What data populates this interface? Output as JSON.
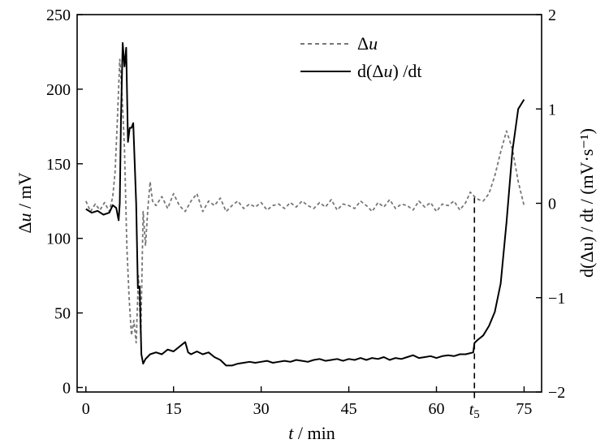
{
  "chart_data": {
    "type": "line",
    "x_axis": {
      "label_var": "t",
      "label_rest": " / min",
      "range": [
        -1.5,
        78
      ],
      "ticks": [
        0,
        15,
        30,
        45,
        60,
        75
      ],
      "tick_labels": [
        "0",
        "15",
        "30",
        "45",
        "60",
        "75"
      ]
    },
    "y_left": {
      "label_prefix": "Δ",
      "label_var": "u",
      "label_rest": " / mV",
      "range": [
        -3,
        250
      ],
      "ticks": [
        0,
        50,
        100,
        150,
        200,
        250
      ],
      "tick_labels": [
        "0",
        "50",
        "100",
        "150",
        "200",
        "250"
      ]
    },
    "y_right": {
      "label": "d(Δu) / dt / (mV·s⁻¹)",
      "range": [
        -2,
        2
      ],
      "ticks": [
        -2,
        -1,
        0,
        1,
        2
      ],
      "tick_labels": [
        "−2",
        "−1",
        "0",
        "1",
        "2"
      ]
    },
    "marker": {
      "x": 66.5,
      "label_var": "t",
      "label_sub": "5"
    },
    "legend": {
      "position": "top-center",
      "items": [
        {
          "label_prefix": "Δ",
          "label_var": "u",
          "label_rest": "",
          "style": "dashed"
        },
        {
          "label_prefix": "d(Δ",
          "label_var": "u",
          "label_rest": ") /dt",
          "style": "solid"
        }
      ]
    },
    "series": [
      {
        "name": "Δu",
        "axis": "left",
        "color": "#777777",
        "style": "dashed",
        "x": [
          0,
          0.8,
          1.6,
          2.4,
          3.2,
          4.0,
          4.6,
          5.0,
          5.4,
          5.8,
          6.2,
          6.6,
          7.0,
          7.4,
          7.8,
          8.2,
          8.6,
          9.0,
          9.4,
          9.8,
          10.2,
          10.6,
          11.0,
          11.4,
          12,
          13,
          14,
          15,
          16,
          17,
          18,
          19,
          20,
          21,
          22,
          23,
          24,
          25,
          26,
          27,
          28,
          29,
          30,
          31,
          32,
          33,
          34,
          35,
          36,
          37,
          38,
          39,
          40,
          41,
          42,
          43,
          44,
          45,
          46,
          47,
          48,
          49,
          50,
          51,
          52,
          53,
          54,
          55,
          56,
          57,
          58,
          59,
          60,
          61,
          62,
          63,
          64,
          65,
          65.8,
          66.5,
          67.2,
          68,
          69,
          70,
          71,
          72,
          73,
          74,
          75
        ],
        "y": [
          125,
          118,
          123,
          119,
          124,
          118,
          128,
          145,
          180,
          220,
          195,
          160,
          95,
          60,
          35,
          45,
          30,
          75,
          35,
          118,
          95,
          120,
          138,
          125,
          122,
          128,
          120,
          130,
          122,
          118,
          125,
          130,
          118,
          125,
          122,
          127,
          118,
          122,
          125,
          120,
          123,
          121,
          124,
          119,
          122,
          123,
          120,
          124,
          121,
          125,
          122,
          120,
          124,
          121,
          126,
          119,
          123,
          122,
          120,
          125,
          122,
          118,
          124,
          121,
          126,
          120,
          123,
          122,
          119,
          125,
          121,
          124,
          118,
          123,
          122,
          125,
          119,
          124,
          131,
          128,
          126,
          125,
          130,
          142,
          158,
          172,
          160,
          138,
          122
        ]
      },
      {
        "name": "d(Δu)/dt",
        "axis": "right",
        "color": "#000000",
        "style": "solid",
        "x": [
          0,
          1,
          2,
          3,
          4,
          4.6,
          5.2,
          5.6,
          5.8,
          6.0,
          6.3,
          6.6,
          6.9,
          7.2,
          7.5,
          7.8,
          8.1,
          8.6,
          8.9,
          9.2,
          9.5,
          9.8,
          10.2,
          11,
          12,
          13,
          14,
          15,
          16,
          17,
          17.5,
          18,
          19,
          20,
          21,
          22,
          23,
          24,
          25,
          26,
          27,
          28,
          29,
          30,
          31,
          32,
          33,
          34,
          35,
          36,
          37,
          38,
          39,
          40,
          41,
          42,
          43,
          44,
          45,
          46,
          47,
          48,
          49,
          50,
          51,
          52,
          53,
          54,
          55,
          56,
          57,
          58,
          59,
          60,
          61,
          62,
          63,
          64,
          65,
          66.3,
          66.5,
          67,
          68,
          69,
          70,
          71,
          72,
          73,
          74,
          75
        ],
        "y": [
          -0.06,
          -0.1,
          -0.08,
          -0.12,
          -0.1,
          -0.02,
          -0.05,
          -0.18,
          0.0,
          0.9,
          1.7,
          1.45,
          1.65,
          0.65,
          0.8,
          0.8,
          0.85,
          0.0,
          -0.9,
          -0.88,
          -1.6,
          -1.7,
          -1.65,
          -1.6,
          -1.58,
          -1.6,
          -1.55,
          -1.57,
          -1.52,
          -1.47,
          -1.58,
          -1.6,
          -1.57,
          -1.6,
          -1.58,
          -1.63,
          -1.66,
          -1.72,
          -1.72,
          -1.7,
          -1.69,
          -1.68,
          -1.69,
          -1.68,
          -1.67,
          -1.69,
          -1.68,
          -1.67,
          -1.68,
          -1.66,
          -1.67,
          -1.68,
          -1.66,
          -1.65,
          -1.67,
          -1.66,
          -1.65,
          -1.67,
          -1.65,
          -1.66,
          -1.64,
          -1.66,
          -1.64,
          -1.65,
          -1.63,
          -1.66,
          -1.64,
          -1.65,
          -1.63,
          -1.61,
          -1.64,
          -1.63,
          -1.62,
          -1.64,
          -1.62,
          -1.61,
          -1.62,
          -1.6,
          -1.6,
          -1.58,
          -1.48,
          -1.45,
          -1.4,
          -1.3,
          -1.15,
          -0.85,
          -0.2,
          0.55,
          1.0,
          1.1
        ]
      }
    ]
  }
}
